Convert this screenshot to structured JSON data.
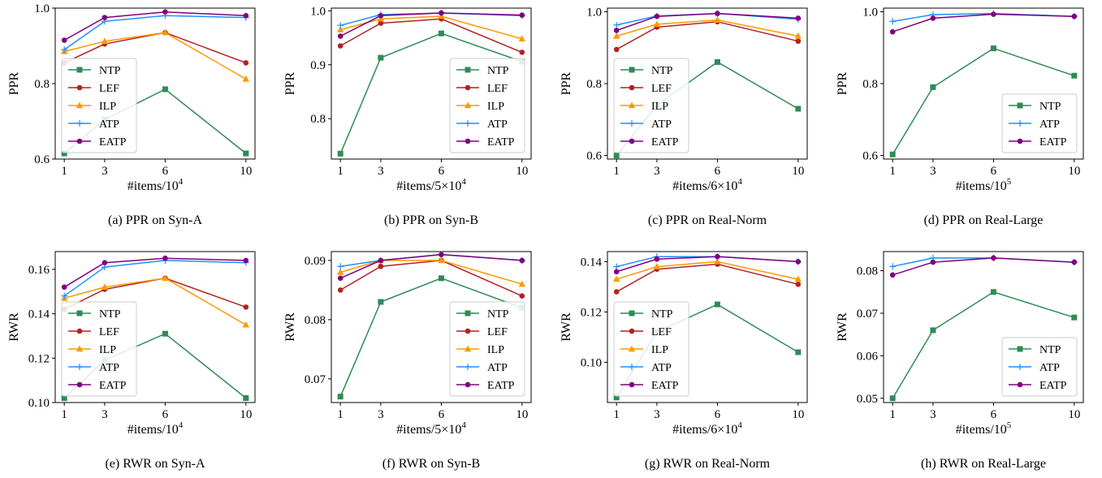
{
  "colors": {
    "NTP": "#2e8b57",
    "LEF": "#b22222",
    "ILP": "#ff9900",
    "ATP": "#1e90ff",
    "EATP": "#800080"
  },
  "chart_data": [
    {
      "type": "line",
      "caption": "(a) PPR on Syn-A",
      "ylabel": "PPR",
      "xlabel": {
        "main": "#items/",
        "base": "10",
        "exp": "4"
      },
      "x": [
        1,
        3,
        6,
        10
      ],
      "xticks": [
        "1",
        "3",
        "6",
        "10"
      ],
      "ylim": [
        0.6,
        1.0
      ],
      "yticks": [
        "0.6",
        "0.8",
        "1.0"
      ],
      "legend": "lower-left",
      "series": [
        {
          "name": "NTP",
          "values": [
            0.615,
            0.705,
            0.785,
            0.615
          ]
        },
        {
          "name": "LEF",
          "values": [
            0.855,
            0.905,
            0.935,
            0.855
          ]
        },
        {
          "name": "ILP",
          "values": [
            0.885,
            0.912,
            0.935,
            0.812
          ]
        },
        {
          "name": "ATP",
          "values": [
            0.89,
            0.965,
            0.98,
            0.975
          ]
        },
        {
          "name": "EATP",
          "values": [
            0.915,
            0.975,
            0.99,
            0.98
          ]
        }
      ]
    },
    {
      "type": "line",
      "caption": "(b) PPR on Syn-B",
      "ylabel": "PPR",
      "xlabel": {
        "main": "#items/5×",
        "base": "10",
        "exp": "4"
      },
      "x": [
        1,
        3,
        6,
        10
      ],
      "xticks": [
        "1",
        "3",
        "6",
        "10"
      ],
      "ylim": [
        0.725,
        1.005
      ],
      "yticks": [
        "0.8",
        "0.9",
        "1.0"
      ],
      "legend": "lower-right",
      "series": [
        {
          "name": "NTP",
          "values": [
            0.735,
            0.913,
            0.958,
            0.906
          ]
        },
        {
          "name": "LEF",
          "values": [
            0.935,
            0.977,
            0.985,
            0.923
          ]
        },
        {
          "name": "ILP",
          "values": [
            0.965,
            0.985,
            0.99,
            0.948
          ]
        },
        {
          "name": "ATP",
          "values": [
            0.973,
            0.993,
            0.996,
            0.991
          ]
        },
        {
          "name": "EATP",
          "values": [
            0.953,
            0.991,
            0.996,
            0.992
          ]
        }
      ]
    },
    {
      "type": "line",
      "caption": "(c) PPR on Real-Norm",
      "ylabel": "PPR",
      "xlabel": {
        "main": "#items/6×",
        "base": "10",
        "exp": "4"
      },
      "x": [
        1,
        3,
        6,
        10
      ],
      "xticks": [
        "1",
        "3",
        "6",
        "10"
      ],
      "ylim": [
        0.59,
        1.01
      ],
      "yticks": [
        "0.6",
        "0.8",
        "1.0"
      ],
      "legend": "lower-left",
      "series": [
        {
          "name": "NTP",
          "values": [
            0.6,
            0.74,
            0.86,
            0.73
          ]
        },
        {
          "name": "LEF",
          "values": [
            0.895,
            0.957,
            0.972,
            0.918
          ]
        },
        {
          "name": "ILP",
          "values": [
            0.932,
            0.965,
            0.977,
            0.932
          ]
        },
        {
          "name": "ATP",
          "values": [
            0.963,
            0.988,
            0.995,
            0.979
          ]
        },
        {
          "name": "EATP",
          "values": [
            0.948,
            0.987,
            0.995,
            0.982
          ]
        }
      ]
    },
    {
      "type": "line",
      "caption": "(d) PPR on Real-Large",
      "ylabel": "PPR",
      "xlabel": {
        "main": "#items/",
        "base": "10",
        "exp": "5"
      },
      "x": [
        1,
        3,
        6,
        10
      ],
      "xticks": [
        "1",
        "3",
        "6",
        "10"
      ],
      "ylim": [
        0.59,
        1.01
      ],
      "yticks": [
        "0.6",
        "0.8",
        "1.0"
      ],
      "legend": "lower-right",
      "series": [
        {
          "name": "NTP",
          "values": [
            0.603,
            0.79,
            0.898,
            0.822
          ]
        },
        {
          "name": "ATP",
          "values": [
            0.973,
            0.992,
            0.995,
            0.987
          ]
        },
        {
          "name": "EATP",
          "values": [
            0.944,
            0.982,
            0.993,
            0.987
          ]
        }
      ]
    },
    {
      "type": "line",
      "caption": "(e) RWR on Syn-A",
      "ylabel": "RWR",
      "xlabel": {
        "main": "#items/",
        "base": "10",
        "exp": "4"
      },
      "x": [
        1,
        3,
        6,
        10
      ],
      "xticks": [
        "1",
        "3",
        "6",
        "10"
      ],
      "ylim": [
        0.1,
        0.168
      ],
      "yticks": [
        "0.10",
        "0.12",
        "0.14",
        "0.16"
      ],
      "legend": "lower-left",
      "series": [
        {
          "name": "NTP",
          "values": [
            0.102,
            0.119,
            0.131,
            0.102
          ]
        },
        {
          "name": "LEF",
          "values": [
            0.142,
            0.151,
            0.156,
            0.143
          ]
        },
        {
          "name": "ILP",
          "values": [
            0.147,
            0.152,
            0.156,
            0.135
          ]
        },
        {
          "name": "ATP",
          "values": [
            0.148,
            0.161,
            0.164,
            0.163
          ]
        },
        {
          "name": "EATP",
          "values": [
            0.152,
            0.163,
            0.165,
            0.164
          ]
        }
      ]
    },
    {
      "type": "line",
      "caption": "(f) RWR on Syn-B",
      "ylabel": "RWR",
      "xlabel": {
        "main": "#items/5×",
        "base": "10",
        "exp": "4"
      },
      "x": [
        1,
        3,
        6,
        10
      ],
      "xticks": [
        "1",
        "3",
        "6",
        "10"
      ],
      "ylim": [
        0.066,
        0.0915
      ],
      "yticks": [
        "0.07",
        "0.08",
        "0.09"
      ],
      "legend": "lower-right",
      "series": [
        {
          "name": "NTP",
          "values": [
            0.067,
            0.083,
            0.087,
            0.082
          ]
        },
        {
          "name": "LEF",
          "values": [
            0.085,
            0.089,
            0.09,
            0.084
          ]
        },
        {
          "name": "ILP",
          "values": [
            0.088,
            0.09,
            0.09,
            0.086
          ]
        },
        {
          "name": "ATP",
          "values": [
            0.089,
            0.09,
            0.091,
            0.09
          ]
        },
        {
          "name": "EATP",
          "values": [
            0.087,
            0.09,
            0.091,
            0.09
          ]
        }
      ]
    },
    {
      "type": "line",
      "caption": "(g) RWR on Real-Norm",
      "ylabel": "RWR",
      "xlabel": {
        "main": "#items/6×",
        "base": "10",
        "exp": "4"
      },
      "x": [
        1,
        3,
        6,
        10
      ],
      "xticks": [
        "1",
        "3",
        "6",
        "10"
      ],
      "ylim": [
        0.084,
        0.144
      ],
      "yticks": [
        "0.10",
        "0.12",
        "0.14"
      ],
      "legend": "lower-left",
      "series": [
        {
          "name": "NTP",
          "values": [
            0.086,
            0.112,
            0.123,
            0.104
          ]
        },
        {
          "name": "LEF",
          "values": [
            0.128,
            0.137,
            0.139,
            0.131
          ]
        },
        {
          "name": "ILP",
          "values": [
            0.133,
            0.138,
            0.14,
            0.133
          ]
        },
        {
          "name": "ATP",
          "values": [
            0.138,
            0.142,
            0.142,
            0.14
          ]
        },
        {
          "name": "EATP",
          "values": [
            0.136,
            0.141,
            0.142,
            0.14
          ]
        }
      ]
    },
    {
      "type": "line",
      "caption": "(h) RWR on Real-Large",
      "ylabel": "RWR",
      "xlabel": {
        "main": "#items/",
        "base": "10",
        "exp": "5"
      },
      "x": [
        1,
        3,
        6,
        10
      ],
      "xticks": [
        "1",
        "3",
        "6",
        "10"
      ],
      "ylim": [
        0.049,
        0.0845
      ],
      "yticks": [
        "0.05",
        "0.06",
        "0.07",
        "0.08"
      ],
      "legend": "lower-right",
      "series": [
        {
          "name": "NTP",
          "values": [
            0.05,
            0.066,
            0.075,
            0.069
          ]
        },
        {
          "name": "ATP",
          "values": [
            0.081,
            0.083,
            0.083,
            0.082
          ]
        },
        {
          "name": "EATP",
          "values": [
            0.079,
            0.082,
            0.083,
            0.082
          ]
        }
      ]
    }
  ]
}
